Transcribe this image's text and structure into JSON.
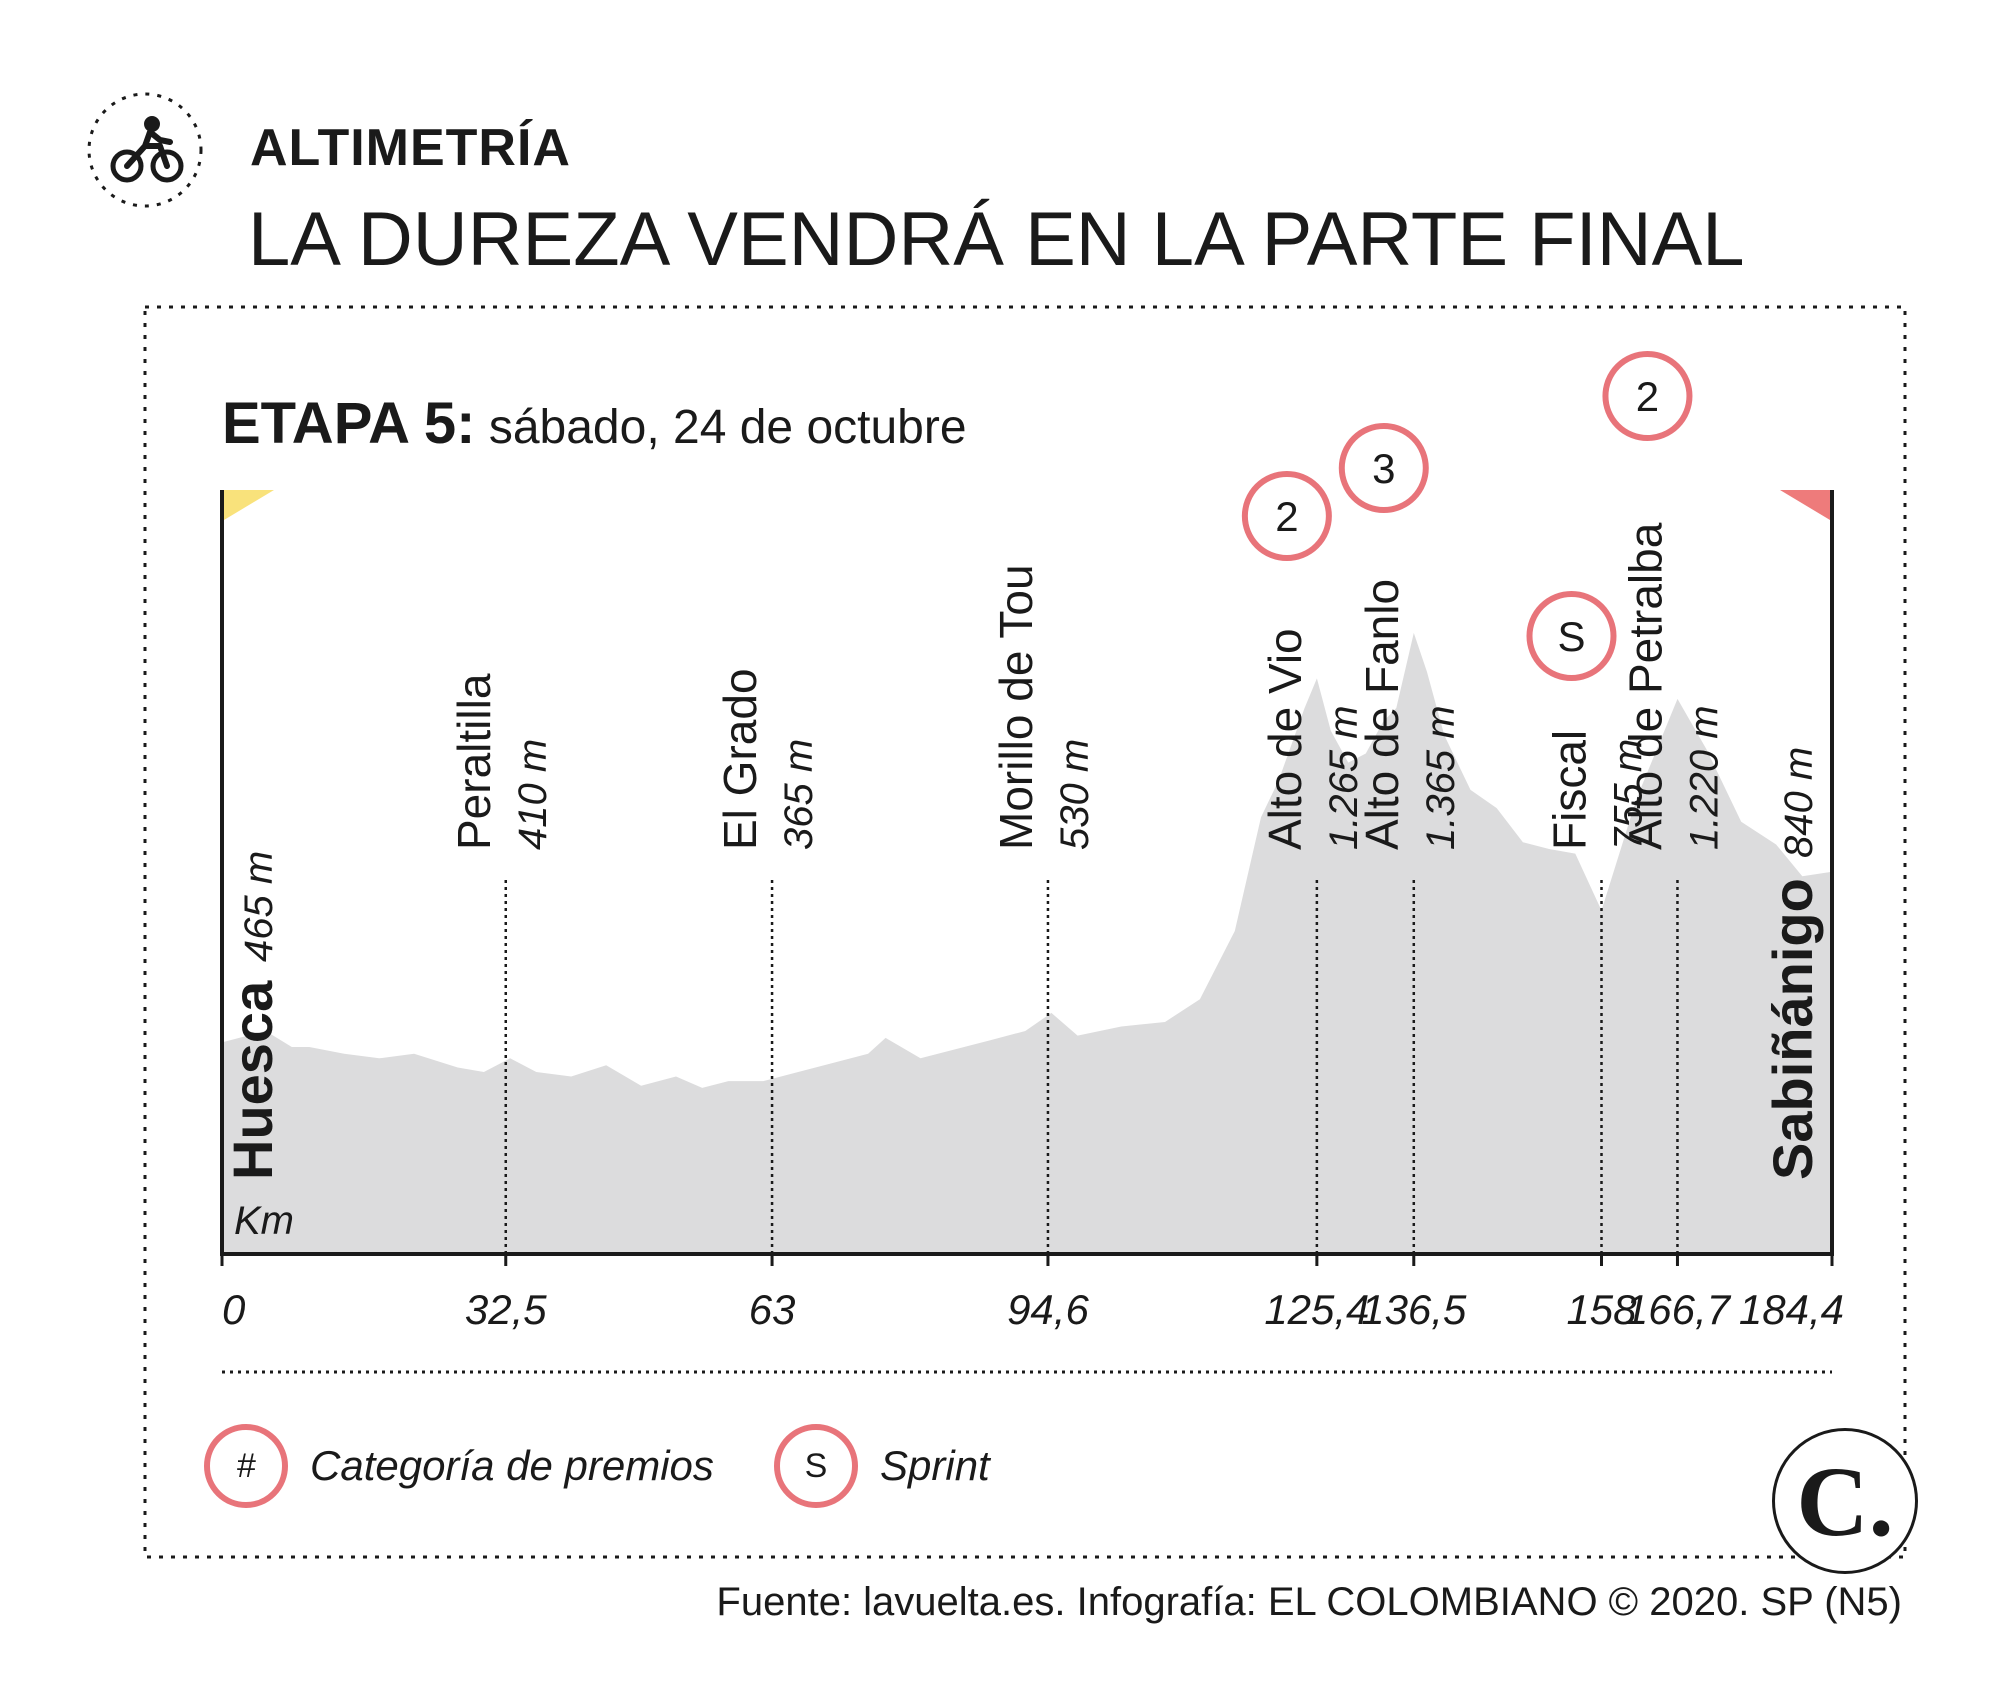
{
  "header": {
    "kicker": "ALTIMETRÍA",
    "headline": "LA DUREZA VENDRÁ EN LA PARTE FINAL",
    "icon": "cyclist-icon"
  },
  "stage": {
    "name": "ETAPA 5:",
    "date": "sábado, 24 de octubre"
  },
  "chart_data": {
    "type": "area",
    "xlabel": "Km",
    "xlim": [
      0,
      184.4
    ],
    "tick_labels": [
      "0",
      "32,5",
      "63",
      "94,6",
      "125,4",
      "136,5",
      "158",
      "166,7",
      "184,4"
    ],
    "tick_values": [
      0,
      32.5,
      63,
      94.6,
      125.4,
      136.5,
      158,
      166.7,
      184.4
    ],
    "profile": {
      "x": [
        0,
        5,
        8,
        10,
        14,
        18,
        22,
        27,
        30,
        33,
        36,
        40,
        44,
        48,
        52,
        55,
        58,
        62,
        66,
        70,
        74,
        76,
        80,
        84,
        88,
        92,
        95,
        98,
        103,
        108,
        112,
        116,
        119,
        121,
        124,
        125.4,
        127,
        129,
        131,
        133,
        134.5,
        136.5,
        138,
        140,
        143,
        146,
        149,
        152,
        155,
        158,
        162,
        166.7,
        170,
        174,
        178,
        181,
        184.4
      ],
      "elevation": [
        465,
        490,
        455,
        455,
        440,
        430,
        440,
        410,
        400,
        430,
        400,
        390,
        415,
        370,
        390,
        365,
        380,
        380,
        400,
        420,
        440,
        475,
        430,
        450,
        470,
        490,
        530,
        480,
        500,
        510,
        560,
        710,
        960,
        1040,
        1200,
        1265,
        1150,
        1080,
        1100,
        1170,
        1200,
        1365,
        1280,
        1140,
        1020,
        980,
        905,
        890,
        880,
        755,
        1000,
        1220,
        1110,
        950,
        900,
        830,
        840
      ]
    },
    "points": [
      {
        "km_label": "32,5",
        "km": 32.5,
        "place": "Peraltilla",
        "elev_label": "410 m",
        "elev": 410,
        "badge": ""
      },
      {
        "km_label": "63",
        "km": 63,
        "place": "El Grado",
        "elev_label": "365 m",
        "elev": 365,
        "badge": ""
      },
      {
        "km_label": "94,6",
        "km": 94.6,
        "place": "Morillo de Tou",
        "elev_label": "530 m",
        "elev": 530,
        "badge": ""
      },
      {
        "km_label": "125,4",
        "km": 125.4,
        "place": "Alto de Vio",
        "elev_label": "1.265 m",
        "elev": 1265,
        "badge": "2"
      },
      {
        "km_label": "136,5",
        "km": 136.5,
        "place": "Alto de Fanlo",
        "elev_label": "1.365 m",
        "elev": 1365,
        "badge": "3"
      },
      {
        "km_label": "158",
        "km": 158,
        "place": "Fiscal",
        "elev_label": "755 m",
        "elev": 755,
        "badge": "S"
      },
      {
        "km_label": "166,7",
        "km": 166.7,
        "place": "Alto de Petralba",
        "elev_label": "1.220 m",
        "elev": 1220,
        "badge": "2"
      }
    ],
    "start": {
      "place": "Huesca",
      "elev_label": "465 m",
      "flag_color": "#f9e27b"
    },
    "finish": {
      "place": "Sabiñánigo",
      "elev_label": "840 m",
      "flag_color": "#ee7b7b"
    },
    "fill_color": "#dcdcdd",
    "badge_color": "#e8747a"
  },
  "legend": [
    {
      "symbol": "#",
      "label": "Categoría de premios"
    },
    {
      "symbol": "S",
      "label": "Sprint"
    }
  ],
  "logo": {
    "letter": "C",
    "dot": "."
  },
  "source": "Fuente: lavuelta.es. Infografía: EL COLOMBIANO © 2020. SP (N5)"
}
